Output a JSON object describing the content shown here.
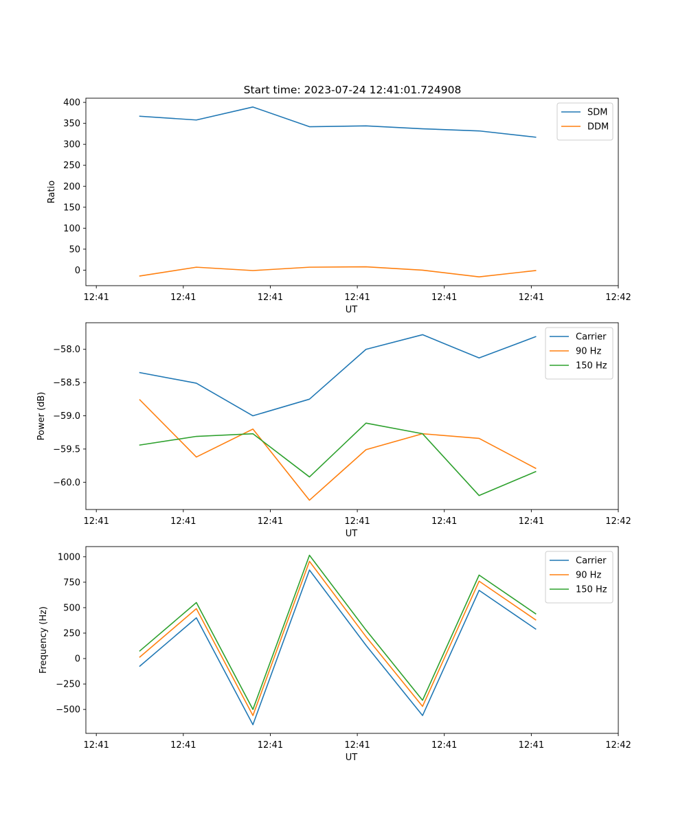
{
  "chart_data": {
    "title": "Start time: 2023-07-24 12:41:01.724908",
    "colors": {
      "blue": "#1f77b4",
      "orange": "#ff7f0e",
      "green": "#2ca02c"
    },
    "x_tick_labels": [
      "12:41",
      "12:41",
      "12:41",
      "12:41",
      "12:41",
      "12:41",
      "12:42"
    ],
    "x_ticks": [
      0,
      1,
      2,
      3,
      4,
      5,
      6
    ],
    "x": [
      0.5,
      1.15,
      1.8,
      2.45,
      3.1,
      3.75,
      4.4,
      5.05
    ],
    "xlim": [
      -0.12,
      6.0
    ],
    "panels": [
      {
        "type": "line",
        "xlabel": "UT",
        "ylabel": "Ratio",
        "ylim": [
          -37,
          410
        ],
        "yticks": [
          0,
          50,
          100,
          150,
          200,
          250,
          300,
          350,
          400
        ],
        "ytick_labels": [
          "0",
          "50",
          "100",
          "150",
          "200",
          "250",
          "300",
          "350",
          "400"
        ],
        "legend": "top-right",
        "series": [
          {
            "name": "SDM",
            "color": "blue",
            "values": [
              367,
              358,
              389,
              342,
              344,
              337,
              332,
              317
            ]
          },
          {
            "name": "DDM",
            "color": "orange",
            "values": [
              -14,
              7,
              -1,
              7,
              8,
              0,
              -16,
              -1
            ]
          }
        ]
      },
      {
        "type": "line",
        "xlabel": "UT",
        "ylabel": "Power (dB)",
        "ylim": [
          -60.41,
          -57.6
        ],
        "yticks": [
          -60.0,
          -59.5,
          -59.0,
          -58.5,
          -58.0
        ],
        "ytick_labels": [
          "−60.0",
          "−59.5",
          "−59.0",
          "−58.5",
          "−58.0"
        ],
        "legend": "top-right",
        "series": [
          {
            "name": "Carrier",
            "color": "blue",
            "values": [
              -58.35,
              -58.51,
              -59.0,
              -58.75,
              -58.0,
              -57.78,
              -58.13,
              -57.81
            ]
          },
          {
            "name": "90 Hz",
            "color": "orange",
            "values": [
              -58.76,
              -59.62,
              -59.2,
              -60.27,
              -59.51,
              -59.27,
              -59.34,
              -59.79
            ]
          },
          {
            "name": "150 Hz",
            "color": "green",
            "values": [
              -59.44,
              -59.31,
              -59.27,
              -59.92,
              -59.11,
              -59.27,
              -60.2,
              -59.84
            ]
          }
        ]
      },
      {
        "type": "line",
        "xlabel": "UT",
        "ylabel": "Frequency (Hz)",
        "ylim": [
          -735,
          1100
        ],
        "yticks": [
          -500,
          -250,
          0,
          250,
          500,
          750,
          1000
        ],
        "ytick_labels": [
          "−500",
          "−250",
          "0",
          "250",
          "500",
          "750",
          "1000"
        ],
        "legend": "top-right",
        "series": [
          {
            "name": "Carrier",
            "color": "blue",
            "values": [
              -75,
              400,
              -650,
              870,
              130,
              -560,
              670,
              290
            ]
          },
          {
            "name": "90 Hz",
            "color": "orange",
            "values": [
              15,
              490,
              -560,
              955,
              215,
              -470,
              760,
              380
            ]
          },
          {
            "name": "150 Hz",
            "color": "green",
            "values": [
              75,
              550,
              -500,
              1015,
              280,
              -410,
              820,
              440
            ]
          }
        ]
      }
    ]
  }
}
